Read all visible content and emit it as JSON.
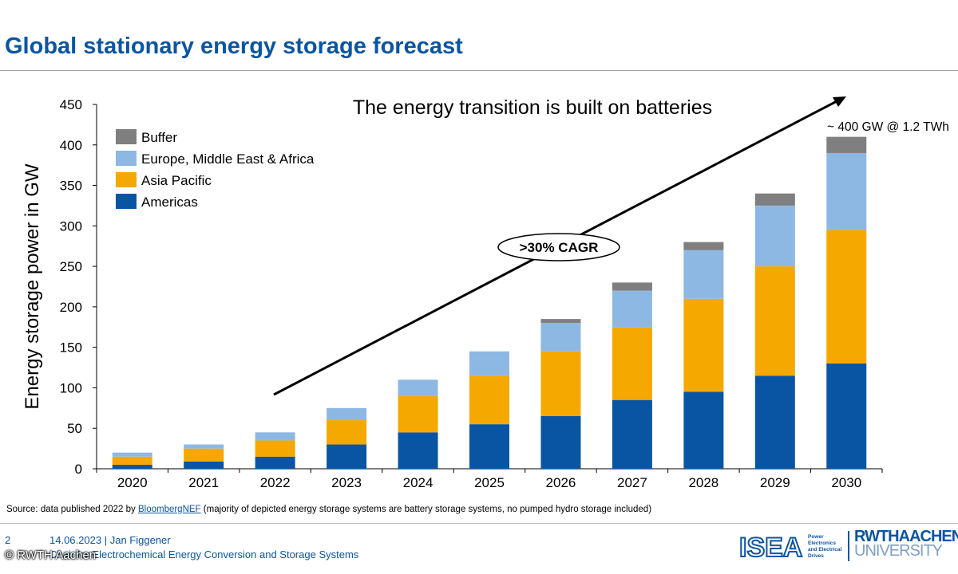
{
  "title": "Global stationary energy storage forecast",
  "chart_data": {
    "type": "bar",
    "stacked": true,
    "subtitle": "The energy transition is built on batteries",
    "ylabel": "Energy storage power in GW",
    "xlabel": "",
    "ylim": [
      0,
      450
    ],
    "yticks": [
      0,
      50,
      100,
      150,
      200,
      250,
      300,
      350,
      400,
      450
    ],
    "categories": [
      "2020",
      "2021",
      "2022",
      "2023",
      "2024",
      "2025",
      "2026",
      "2027",
      "2028",
      "2029",
      "2030"
    ],
    "series": [
      {
        "name": "Americas",
        "color": "#0a55a3",
        "values": [
          5,
          9,
          15,
          30,
          45,
          55,
          65,
          85,
          95,
          115,
          130
        ]
      },
      {
        "name": "Asia Pacific",
        "color": "#f5a800",
        "values": [
          10,
          16,
          20,
          30,
          45,
          60,
          80,
          90,
          115,
          135,
          165
        ]
      },
      {
        "name": "Europe, Middle East & Africa",
        "color": "#8db8e4",
        "values": [
          5,
          5,
          10,
          15,
          20,
          30,
          35,
          45,
          60,
          75,
          95
        ]
      },
      {
        "name": "Buffer",
        "color": "#7f7f7f",
        "values": [
          0,
          0,
          0,
          0,
          0,
          0,
          5,
          10,
          10,
          15,
          20
        ]
      }
    ],
    "legend": [
      "Buffer",
      "Europe, Middle East & Africa",
      "Asia Pacific",
      "Americas"
    ],
    "legend_position": "top-left",
    "annotations": {
      "cagr": ">30% CAGR",
      "end_prefix": "~",
      "end_value": "400",
      "end_suffix": "GW @ 1.2 TWh"
    }
  },
  "source": {
    "prefix": "Source: data published 2022 by",
    "link": "BloombergNEF",
    "suffix": "(majority of depicted energy storage systems are battery storage systems, no pumped hydro storage included)"
  },
  "footer": {
    "page": "2",
    "date": "14.06.2023",
    "separator": "|",
    "author": "Jan Figgener",
    "chair": "Chair for Electrochemical Energy Conversion and Storage Systems",
    "copyright": "© RWTH Aachen"
  },
  "logos": {
    "isea": "ISEA",
    "isea_lines": [
      "Power",
      "Electronics",
      "and Electrical",
      "Drives"
    ],
    "rwth_top": "RWTHAACHEN",
    "rwth_bottom": "UNIVERSITY"
  }
}
